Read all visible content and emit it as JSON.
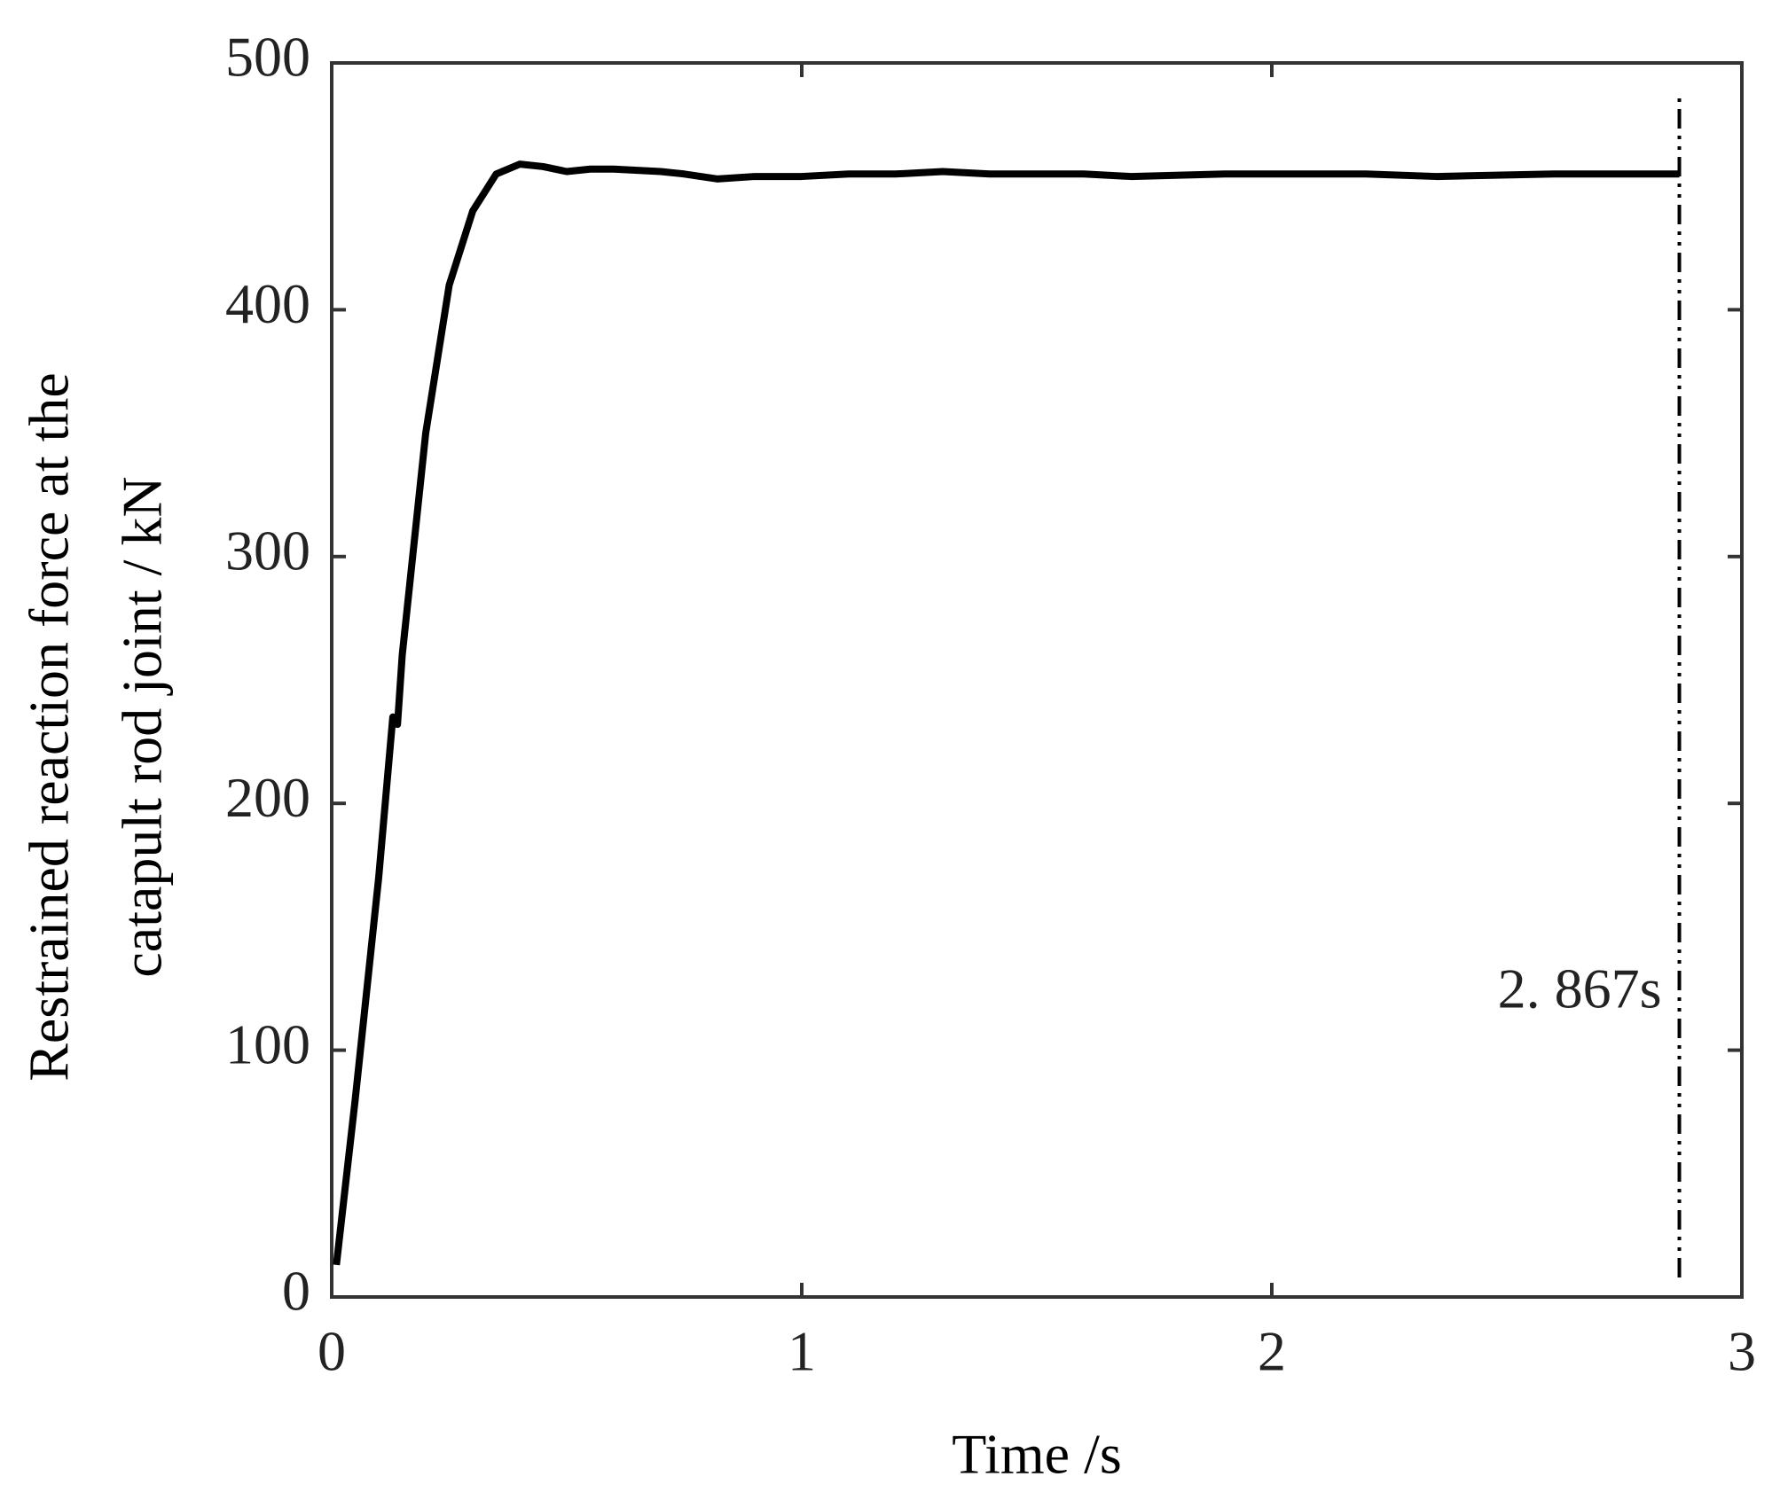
{
  "chart_data": {
    "type": "line",
    "xlabel": "Time /s",
    "ylabel": [
      "Restrained reaction force at the",
      "catapult rod joint / kN"
    ],
    "x": [
      0.01,
      0.05,
      0.1,
      0.13,
      0.14,
      0.15,
      0.2,
      0.25,
      0.3,
      0.35,
      0.4,
      0.45,
      0.5,
      0.55,
      0.6,
      0.7,
      0.75,
      0.82,
      0.9,
      1.0,
      1.1,
      1.2,
      1.3,
      1.4,
      1.6,
      1.7,
      1.9,
      2.0,
      2.2,
      2.35,
      2.6,
      2.867
    ],
    "series": [
      {
        "color": "#000000",
        "values": [
          13,
          80,
          170,
          235,
          232,
          260,
          350,
          410,
          440,
          455,
          459,
          458,
          456,
          457,
          457,
          456,
          455,
          453,
          454,
          454,
          455,
          455,
          456,
          455,
          455,
          454,
          455,
          455,
          455,
          454,
          455,
          455
        ]
      }
    ],
    "xlim": [
      0,
      3
    ],
    "xticks": [
      0,
      1,
      2,
      3
    ],
    "ylim": [
      0,
      500
    ],
    "yticks": [
      0,
      100,
      200,
      300,
      400,
      500
    ],
    "marker_x": 2.867,
    "annotation": "2. 867s"
  }
}
